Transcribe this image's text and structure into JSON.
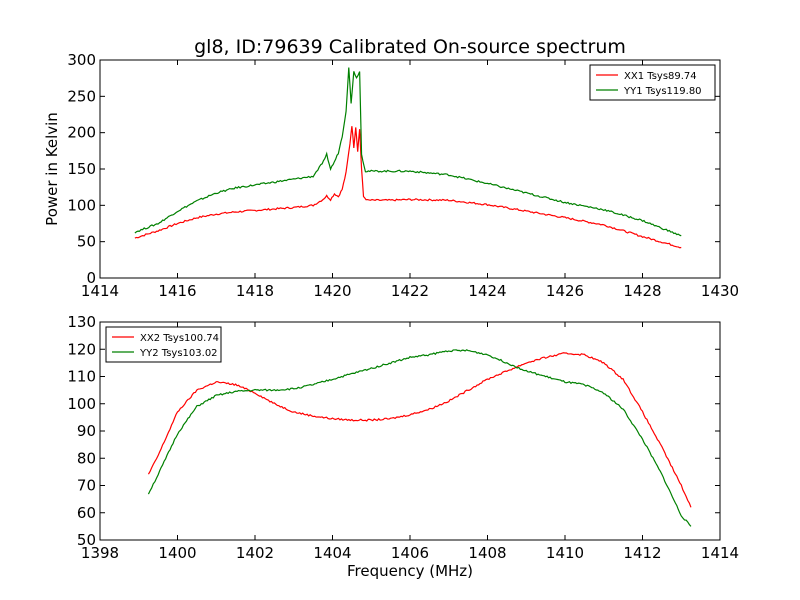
{
  "title": "gl8, ID:79639 Calibrated On-source spectrum",
  "chart_data": [
    {
      "type": "line",
      "title": "gl8, ID:79639 Calibrated On-source spectrum",
      "xlabel": "",
      "ylabel": "Power in Kelvin",
      "xlim": [
        1414,
        1430
      ],
      "ylim": [
        0,
        300
      ],
      "xticks": [
        1414,
        1416,
        1418,
        1420,
        1422,
        1424,
        1426,
        1428,
        1430
      ],
      "yticks": [
        0,
        50,
        100,
        150,
        200,
        250,
        300
      ],
      "grid": false,
      "legend": "top-right",
      "series": [
        {
          "name": "XX1 Tsys89.74",
          "color": "#ff0000",
          "points": [
            [
              1414.9,
              55
            ],
            [
              1415.5,
              65
            ],
            [
              1416,
              75
            ],
            [
              1416.5,
              83
            ],
            [
              1417,
              88
            ],
            [
              1417.5,
              91
            ],
            [
              1418,
              93
            ],
            [
              1418.5,
              95
            ],
            [
              1419,
              97
            ],
            [
              1419.5,
              100
            ],
            [
              1419.75,
              108
            ],
            [
              1419.85,
              113
            ],
            [
              1419.95,
              108
            ],
            [
              1420.05,
              116
            ],
            [
              1420.15,
              112
            ],
            [
              1420.25,
              122
            ],
            [
              1420.35,
              145
            ],
            [
              1420.45,
              185
            ],
            [
              1420.5,
              210
            ],
            [
              1420.55,
              180
            ],
            [
              1420.6,
              208
            ],
            [
              1420.65,
              175
            ],
            [
              1420.7,
              205
            ],
            [
              1420.75,
              150
            ],
            [
              1420.8,
              112
            ],
            [
              1420.9,
              107
            ],
            [
              1421.5,
              107
            ],
            [
              1422,
              108
            ],
            [
              1423,
              107
            ],
            [
              1424,
              101
            ],
            [
              1425,
              92
            ],
            [
              1426,
              83
            ],
            [
              1427,
              73
            ],
            [
              1428,
              57
            ],
            [
              1429,
              42
            ]
          ]
        },
        {
          "name": "YY1 Tsys119.80",
          "color": "#008000",
          "points": [
            [
              1414.9,
              63
            ],
            [
              1415.5,
              75
            ],
            [
              1416,
              92
            ],
            [
              1416.5,
              106
            ],
            [
              1417,
              117
            ],
            [
              1417.5,
              124
            ],
            [
              1418,
              128
            ],
            [
              1418.5,
              132
            ],
            [
              1419,
              136
            ],
            [
              1419.5,
              140
            ],
            [
              1419.7,
              155
            ],
            [
              1419.8,
              163
            ],
            [
              1419.85,
              170
            ],
            [
              1419.95,
              150
            ],
            [
              1420.05,
              160
            ],
            [
              1420.15,
              172
            ],
            [
              1420.25,
              195
            ],
            [
              1420.35,
              230
            ],
            [
              1420.42,
              290
            ],
            [
              1420.48,
              240
            ],
            [
              1420.55,
              285
            ],
            [
              1420.62,
              275
            ],
            [
              1420.7,
              285
            ],
            [
              1420.75,
              170
            ],
            [
              1420.85,
              147
            ],
            [
              1421,
              147
            ],
            [
              1422,
              147
            ],
            [
              1423,
              142
            ],
            [
              1424,
              130
            ],
            [
              1425,
              117
            ],
            [
              1426,
              104
            ],
            [
              1427,
              94
            ],
            [
              1428,
              79
            ],
            [
              1429,
              58
            ]
          ]
        }
      ]
    },
    {
      "type": "line",
      "title": "",
      "xlabel": "Frequency (MHz)",
      "ylabel": "",
      "xlim": [
        1398,
        1414
      ],
      "ylim": [
        50,
        130
      ],
      "xticks": [
        1398,
        1400,
        1402,
        1404,
        1406,
        1408,
        1410,
        1412,
        1414
      ],
      "yticks": [
        50,
        60,
        70,
        80,
        90,
        100,
        110,
        120,
        130
      ],
      "grid": false,
      "legend": "top-left",
      "series": [
        {
          "name": "XX2 Tsys100.74",
          "color": "#ff0000",
          "points": [
            [
              1399.25,
              74
            ],
            [
              1399.5,
              81
            ],
            [
              1400,
              97
            ],
            [
              1400.5,
              105
            ],
            [
              1401,
              108
            ],
            [
              1401.5,
              107
            ],
            [
              1402,
              104
            ],
            [
              1402.5,
              100
            ],
            [
              1403,
              97
            ],
            [
              1403.5,
              95.5
            ],
            [
              1404,
              94.5
            ],
            [
              1404.5,
              94
            ],
            [
              1405,
              94
            ],
            [
              1405.5,
              94.5
            ],
            [
              1406,
              96
            ],
            [
              1406.5,
              98
            ],
            [
              1407,
              101
            ],
            [
              1407.5,
              105
            ],
            [
              1408,
              109
            ],
            [
              1408.5,
              112
            ],
            [
              1409,
              115
            ],
            [
              1409.5,
              117
            ],
            [
              1410,
              118.5
            ],
            [
              1410.5,
              118
            ],
            [
              1411,
              115
            ],
            [
              1411.5,
              109
            ],
            [
              1412,
              97
            ],
            [
              1412.5,
              84
            ],
            [
              1413,
              70
            ],
            [
              1413.25,
              62
            ]
          ]
        },
        {
          "name": "YY2 Tsys103.02",
          "color": "#008000",
          "points": [
            [
              1399.25,
              67
            ],
            [
              1399.5,
              74
            ],
            [
              1400,
              89
            ],
            [
              1400.5,
              99
            ],
            [
              1401,
              103
            ],
            [
              1401.5,
              104.5
            ],
            [
              1402,
              105
            ],
            [
              1402.5,
              105
            ],
            [
              1403,
              105.5
            ],
            [
              1403.5,
              107
            ],
            [
              1404,
              109
            ],
            [
              1404.5,
              111
            ],
            [
              1405,
              113
            ],
            [
              1405.5,
              115
            ],
            [
              1406,
              117
            ],
            [
              1406.5,
              118
            ],
            [
              1407,
              119.5
            ],
            [
              1407.5,
              119.5
            ],
            [
              1408,
              118
            ],
            [
              1408.5,
              115
            ],
            [
              1409,
              112
            ],
            [
              1409.5,
              110
            ],
            [
              1410,
              108
            ],
            [
              1410.5,
              107
            ],
            [
              1411,
              104
            ],
            [
              1411.5,
              98
            ],
            [
              1412,
              87
            ],
            [
              1412.5,
              74
            ],
            [
              1413,
              59
            ],
            [
              1413.25,
              55
            ]
          ]
        }
      ]
    }
  ]
}
